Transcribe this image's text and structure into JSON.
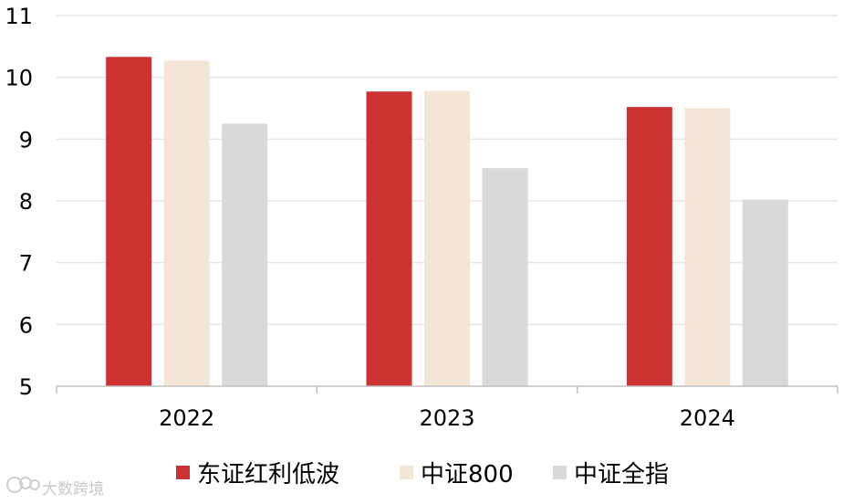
{
  "chart_data": {
    "type": "bar",
    "title": "",
    "xlabel": "",
    "ylabel": "",
    "categories": [
      "2022",
      "2023",
      "2024"
    ],
    "series": [
      {
        "name": "东证红利低波",
        "values": [
          10.33,
          9.77,
          9.52
        ],
        "color": "#cd3232"
      },
      {
        "name": "中证800",
        "values": [
          10.27,
          9.78,
          9.5
        ],
        "color": "#f3e6d6"
      },
      {
        "name": "中证全指",
        "values": [
          9.25,
          8.53,
          8.02
        ],
        "color": "#d9d9d9"
      }
    ],
    "ylim": [
      5,
      11
    ],
    "yticks": [
      "5",
      "6",
      "7",
      "8",
      "9",
      "10",
      "11"
    ],
    "grid": true,
    "legend_position": "bottom"
  },
  "watermark": {
    "text": "大数跨境"
  }
}
